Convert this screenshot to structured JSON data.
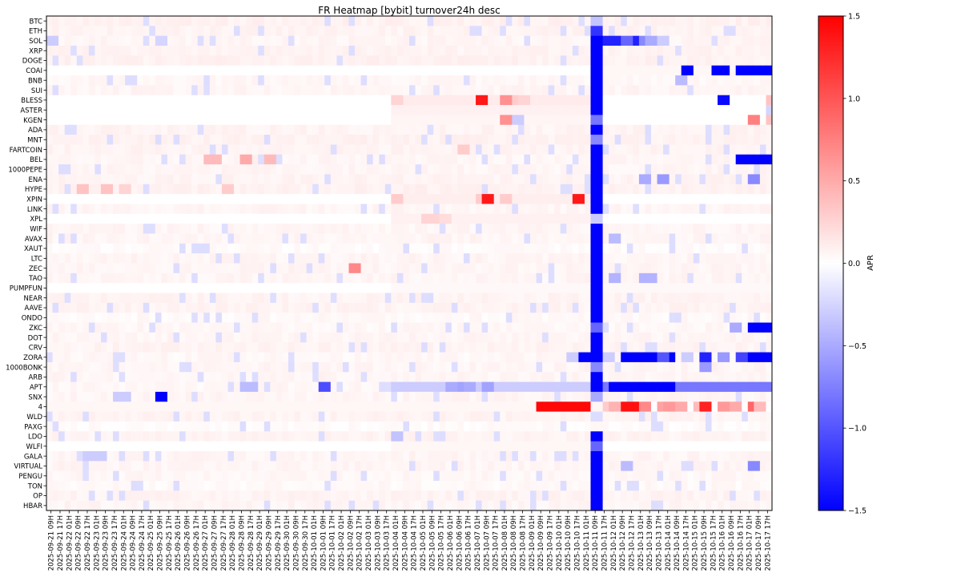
{
  "chart_data": {
    "type": "heatmap",
    "title": "FR Heatmap [bybit] turnover24h desc",
    "colorbar": {
      "label": "APR",
      "range": [
        -1.5,
        1.5
      ],
      "ticks": [
        1.5,
        1.0,
        0.5,
        0.0,
        -0.5,
        -1.0,
        -1.5
      ],
      "tick_labels": [
        "1.5",
        "1.0",
        "0.5",
        "0.0",
        "−0.5",
        "−1.0",
        "−1.5"
      ],
      "colormap": "bwr",
      "colors": {
        "low": "#0000ff",
        "mid": "#ffffff",
        "high": "#ff0000"
      }
    },
    "rows": [
      "BTC",
      "ETH",
      "SOL",
      "XRP",
      "DOGE",
      "COAI",
      "BNB",
      "SUI",
      "BLESS",
      "ASTER",
      "KGEN",
      "ADA",
      "MNT",
      "FARTCOIN",
      "BEL",
      "1000PEPE",
      "ENA",
      "HYPE",
      "XPIN",
      "LINK",
      "XPL",
      "WIF",
      "AVAX",
      "XAUT",
      "LTC",
      "ZEC",
      "TAO",
      "PUMPFUN",
      "NEAR",
      "AAVE",
      "ONDO",
      "ZKC",
      "DOT",
      "CRV",
      "ZORA",
      "1000BONK",
      "ARB",
      "APT",
      "SNX",
      "4",
      "WLD",
      "PAXG",
      "LDO",
      "WLFI",
      "GALA",
      "VIRTUAL",
      "PENGU",
      "TON",
      "OP",
      "HBAR"
    ],
    "columns": [
      "2025-09-21 09H",
      "2025-09-21 17H",
      "2025-09-22 01H",
      "2025-09-22 09H",
      "2025-09-22 17H",
      "2025-09-23 01H",
      "2025-09-23 09H",
      "2025-09-23 17H",
      "2025-09-24 01H",
      "2025-09-24 09H",
      "2025-09-24 17H",
      "2025-09-25 01H",
      "2025-09-25 09H",
      "2025-09-25 17H",
      "2025-09-26 01H",
      "2025-09-26 09H",
      "2025-09-26 17H",
      "2025-09-27 01H",
      "2025-09-27 09H",
      "2025-09-27 17H",
      "2025-09-28 01H",
      "2025-09-28 09H",
      "2025-09-28 17H",
      "2025-09-29 01H",
      "2025-09-29 09H",
      "2025-09-29 17H",
      "2025-09-30 01H",
      "2025-09-30 09H",
      "2025-09-30 17H",
      "2025-10-01 01H",
      "2025-10-01 09H",
      "2025-10-01 17H",
      "2025-10-02 01H",
      "2025-10-02 09H",
      "2025-10-02 17H",
      "2025-10-03 01H",
      "2025-10-03 09H",
      "2025-10-03 17H",
      "2025-10-04 01H",
      "2025-10-04 09H",
      "2025-10-04 17H",
      "2025-10-05 01H",
      "2025-10-05 09H",
      "2025-10-05 17H",
      "2025-10-06 01H",
      "2025-10-06 09H",
      "2025-10-06 17H",
      "2025-10-07 01H",
      "2025-10-07 09H",
      "2025-10-07 17H",
      "2025-10-08 01H",
      "2025-10-08 09H",
      "2025-10-08 17H",
      "2025-10-09 01H",
      "2025-10-09 09H",
      "2025-10-09 17H",
      "2025-10-10 01H",
      "2025-10-10 09H",
      "2025-10-10 17H",
      "2025-10-11 01H",
      "2025-10-11 09H",
      "2025-10-11 17H",
      "2025-10-12 01H",
      "2025-10-12 09H",
      "2025-10-12 17H",
      "2025-10-13 01H",
      "2025-10-13 09H",
      "2025-10-13 17H",
      "2025-10-14 01H",
      "2025-10-14 09H",
      "2025-10-14 17H",
      "2025-10-15 01H",
      "2025-10-15 09H",
      "2025-10-15 17H",
      "2025-10-16 01H",
      "2025-10-16 09H",
      "2025-10-16 17H",
      "2025-10-17 01H",
      "2025-10-17 09H",
      "2025-10-17 17H"
    ],
    "cells_per_column": 1.5,
    "grid": false,
    "baseline": {
      "BTC": 0.08,
      "ETH": 0.07,
      "SOL": 0.06,
      "XRP": 0.07,
      "DOGE": 0.08,
      "COAI": 0.0,
      "BNB": 0.05,
      "SUI": 0.06,
      "BLESS": 0.0,
      "ASTER": 0.0,
      "KGEN": 0.0,
      "ADA": 0.07,
      "MNT": 0.08,
      "FARTCOIN": 0.07,
      "BEL": 0.06,
      "1000PEPE": 0.06,
      "ENA": 0.07,
      "HYPE": 0.08,
      "XPIN": 0.0,
      "LINK": 0.06,
      "XPL": 0.0,
      "WIF": 0.06,
      "AVAX": 0.06,
      "XAUT": 0.03,
      "LTC": 0.06,
      "ZEC": 0.06,
      "TAO": 0.06,
      "PUMPFUN": 0.0,
      "NEAR": 0.07,
      "AAVE": 0.07,
      "ONDO": 0.04,
      "ZKC": 0.05,
      "DOT": 0.06,
      "CRV": 0.07,
      "ZORA": 0.05,
      "1000BONK": 0.06,
      "ARB": 0.06,
      "APT": 0.05,
      "SNX": 0.06,
      "4": 0.0,
      "WLD": 0.07,
      "PAXG": 0.03,
      "LDO": 0.07,
      "WLFI": 0.0,
      "GALA": 0.06,
      "VIRTUAL": 0.06,
      "PENGU": 0.05,
      "TON": 0.04,
      "OP": 0.07,
      "HBAR": 0.06
    },
    "overrides": [
      {
        "row": "BLESS",
        "from": "2025-10-04 01H",
        "to": "2025-10-11 01H",
        "value": 0.12
      },
      {
        "row": "ASTER",
        "from": "2025-10-04 01H",
        "to": "2025-10-11 01H",
        "value": 0.08
      },
      {
        "row": "KGEN",
        "from": "2025-10-04 01H",
        "to": "2025-10-11 01H",
        "value": 0.06
      },
      {
        "row": "XPIN",
        "from": "2025-10-04 01H",
        "to": "2025-10-11 01H",
        "value": 0.1
      },
      {
        "row": "XPL",
        "from": "2025-10-04 01H",
        "to": "2025-10-11 01H",
        "value": 0.08
      },
      {
        "row": "WLFI",
        "from": "2025-10-04 01H",
        "to": "2025-10-11 01H",
        "value": 0.05
      },
      {
        "row": "4",
        "from": "2025-09-21 09H",
        "to": "2025-10-11 01H",
        "value": 0.05
      },
      {
        "row": "COAI",
        "from": "2025-10-11 17H",
        "to": "2025-10-17 17H",
        "value": 0.05
      },
      {
        "row": "PUMPFUN",
        "from": "2025-10-04 01H",
        "to": "2025-10-17 17H",
        "value": 0.04
      },
      {
        "row": "BLESS",
        "col": "2025-10-04 01H",
        "value": 0.25
      },
      {
        "row": "BLESS",
        "col": "2025-10-07 01H",
        "value": 1.35
      },
      {
        "row": "BLESS",
        "col": "2025-10-08 01H",
        "value": 0.65
      },
      {
        "row": "BLESS",
        "col": "2025-10-08 09H",
        "value": 0.3
      },
      {
        "row": "BLESS",
        "col": "2025-10-08 17H",
        "value": 0.25
      },
      {
        "row": "BLESS",
        "col": "2025-10-16 01H",
        "value": -1.45
      },
      {
        "row": "BLESS",
        "col": "2025-10-17 17H",
        "value": 0.35
      },
      {
        "row": "ASTER",
        "col": "2025-10-17 17H",
        "value": -0.25
      },
      {
        "row": "KGEN",
        "col": "2025-10-08 01H",
        "value": 0.65
      },
      {
        "row": "KGEN",
        "col": "2025-10-08 09H",
        "value": -0.3
      },
      {
        "row": "KGEN",
        "col": "2025-10-17 01H",
        "value": 0.75
      },
      {
        "row": "KGEN",
        "col": "2025-10-17 17H",
        "value": 0.35
      },
      {
        "row": "XPIN",
        "col": "2025-10-04 01H",
        "value": 0.3
      },
      {
        "row": "XPIN",
        "col": "2025-10-07 01H",
        "value": 0.3
      },
      {
        "row": "XPIN",
        "col": "2025-10-07 09H",
        "value": 1.35
      },
      {
        "row": "XPIN",
        "col": "2025-10-08 01H",
        "value": 0.3
      },
      {
        "row": "XPIN",
        "col": "2025-10-10 17H",
        "value": 1.35
      },
      {
        "row": "XPL",
        "col": "2025-10-05 01H",
        "value": 0.25
      },
      {
        "row": "XPL",
        "col": "2025-10-05 09H",
        "value": 0.25
      },
      {
        "row": "XPL",
        "col": "2025-10-05 17H",
        "value": 0.2
      },
      {
        "row": "FARTCOIN",
        "col": "2025-10-06 09H",
        "value": 0.3
      },
      {
        "row": "ZEC",
        "col": "2025-10-02 09H",
        "value": 0.7
      },
      {
        "row": "HYPE",
        "col": "2025-09-22 09H",
        "value": 0.35
      },
      {
        "row": "HYPE",
        "col": "2025-09-23 09H",
        "value": 0.35
      },
      {
        "row": "HYPE",
        "col": "2025-09-24 01H",
        "value": 0.25
      },
      {
        "row": "HYPE",
        "col": "2025-09-27 17H",
        "value": 0.3
      },
      {
        "row": "BEL",
        "col": "2025-09-27 01H",
        "value": 0.4
      },
      {
        "row": "BEL",
        "col": "2025-09-27 09H",
        "value": 0.4
      },
      {
        "row": "BEL",
        "col": "2025-09-28 09H",
        "value": 0.5
      },
      {
        "row": "BEL",
        "col": "2025-09-29 09H",
        "value": 0.4
      },
      {
        "row": "SNX",
        "col": "2025-09-25 09H",
        "value": -1.5
      },
      {
        "row": "SNX",
        "col": "2025-09-23 17H",
        "value": -0.3
      },
      {
        "row": "SNX",
        "col": "2025-09-24 01H",
        "value": -0.3
      },
      {
        "row": "APT",
        "col": "2025-10-01 09H",
        "value": -1.05
      },
      {
        "row": "APT",
        "col": "2025-09-28 09H",
        "value": -0.4
      },
      {
        "row": "APT",
        "col": "2025-09-28 17H",
        "value": -0.4
      },
      {
        "row": "LDO",
        "col": "2025-10-04 01H",
        "value": -0.35
      },
      {
        "row": "GALA",
        "col": "2025-09-22 17H",
        "value": -0.3
      },
      {
        "row": "GALA",
        "col": "2025-09-23 01H",
        "value": -0.3
      },
      {
        "row": "TAO",
        "col": "2025-10-12 01H",
        "value": -0.45
      },
      {
        "row": "TAO",
        "col": "2025-10-13 01H",
        "value": -0.45
      },
      {
        "row": "TAO",
        "col": "2025-10-13 09H",
        "value": -0.45
      },
      {
        "row": "SOL",
        "col": "2025-09-21 09H",
        "value": -0.3
      },
      {
        "row": "SOL",
        "col": "2025-09-25 09H",
        "value": -0.25
      },
      {
        "row": "APT",
        "from": "2025-10-04 01H",
        "to": "2025-10-11 01H",
        "value": -0.3
      },
      {
        "row": "APT",
        "col": "2025-10-06 01H",
        "value": -0.5
      },
      {
        "row": "APT",
        "col": "2025-10-06 09H",
        "value": -0.55
      },
      {
        "row": "APT",
        "col": "2025-10-06 17H",
        "value": -0.5
      },
      {
        "row": "APT",
        "col": "2025-10-07 09H",
        "value": -0.55
      },
      {
        "row": "4",
        "from": "2025-10-09 09H",
        "to": "2025-10-11 01H",
        "value": 1.45
      },
      {
        "row": "ZORA",
        "col": "2025-10-10 17H",
        "value": -1.5
      },
      {
        "row": "ZORA",
        "col": "2025-10-11 01H",
        "value": -1.5
      },
      {
        "row": "ZORA",
        "col": "2025-10-10 09H",
        "value": -0.3
      },
      {
        "row": "ALL",
        "col": "2025-10-11 09H",
        "value": -1.5
      },
      {
        "row": "BTC",
        "col": "2025-10-11 09H",
        "value": -0.35
      },
      {
        "row": "ETH",
        "col": "2025-10-11 09H",
        "value": -1.2
      },
      {
        "row": "ADA",
        "col": "2025-10-11 09H",
        "value": -1.5
      },
      {
        "row": "MNT",
        "col": "2025-10-11 09H",
        "value": -0.7
      },
      {
        "row": "KGEN",
        "col": "2025-10-11 09H",
        "value": -0.8
      },
      {
        "row": "XPL",
        "col": "2025-10-11 09H",
        "value": -0.3
      },
      {
        "row": "ZKC",
        "col": "2025-10-11 09H",
        "value": -0.9
      },
      {
        "row": "1000BONK",
        "col": "2025-10-11 09H",
        "value": -0.7
      },
      {
        "row": "SNX",
        "col": "2025-10-11 09H",
        "value": -0.5
      },
      {
        "row": "4",
        "col": "2025-10-11 09H",
        "value": 0.05
      },
      {
        "row": "WLD",
        "col": "2025-10-11 09H",
        "value": -0.2
      },
      {
        "row": "PAXG",
        "col": "2025-10-11 09H",
        "value": 0.05
      },
      {
        "row": "WLFI",
        "col": "2025-10-11 09H",
        "value": -0.9
      },
      {
        "row": "ARB",
        "col": "2025-10-11 09H",
        "value": -1.5
      },
      {
        "row": "SOL",
        "from": "2025-10-11 17H",
        "to": "2025-10-13 17H",
        "value": -1.3
      },
      {
        "row": "SOL",
        "col": "2025-10-12 09H",
        "value": -0.9
      },
      {
        "row": "SOL",
        "col": "2025-10-13 01H",
        "value": -0.7
      },
      {
        "row": "SOL",
        "col": "2025-10-13 09H",
        "value": -0.5
      },
      {
        "row": "SOL",
        "col": "2025-10-13 17H",
        "value": -0.3
      },
      {
        "row": "APT",
        "from": "2025-10-11 17H",
        "to": "2025-10-17 17H",
        "value": -0.8
      },
      {
        "row": "APT",
        "from": "2025-10-12 01H",
        "to": "2025-10-14 01H",
        "value": -1.5
      },
      {
        "row": "ZORA",
        "from": "2025-10-12 09H",
        "to": "2025-10-14 01H",
        "value": -1.5
      },
      {
        "row": "ZORA",
        "col": "2025-10-13 17H",
        "value": -1.0
      },
      {
        "row": "ZORA",
        "col": "2025-10-14 17H",
        "value": -0.3
      },
      {
        "row": "ZORA",
        "col": "2025-10-15 09H",
        "value": -1.3
      },
      {
        "row": "ZORA",
        "col": "2025-10-16 01H",
        "value": -0.6
      },
      {
        "row": "ZORA",
        "col": "2025-10-16 17H",
        "value": -1.1
      },
      {
        "row": "ZORA",
        "from": "2025-10-17 01H",
        "to": "2025-10-17 17H",
        "value": -1.5
      },
      {
        "row": "ZORA",
        "col": "2025-10-11 17H",
        "value": -0.3
      },
      {
        "row": "COAI",
        "col": "2025-10-14 17H",
        "value": -1.5
      },
      {
        "row": "COAI",
        "from": "2025-10-15 17H",
        "to": "2025-10-16 01H",
        "value": -1.5
      },
      {
        "row": "COAI",
        "from": "2025-10-16 17H",
        "to": "2025-10-17 17H",
        "value": -1.5
      },
      {
        "row": "BEL",
        "from": "2025-10-16 17H",
        "to": "2025-10-17 17H",
        "value": -1.5
      },
      {
        "row": "ZKC",
        "from": "2025-10-17 01H",
        "to": "2025-10-17 17H",
        "value": -1.5
      },
      {
        "row": "ZKC",
        "col": "2025-10-16 09H",
        "value": -0.5
      },
      {
        "row": "ENA",
        "col": "2025-10-17 01H",
        "value": -0.7
      },
      {
        "row": "ENA",
        "col": "2025-10-13 01H",
        "value": -0.5
      },
      {
        "row": "ENA",
        "col": "2025-10-13 17H",
        "value": -0.6
      },
      {
        "row": "VIRTUAL",
        "col": "2025-10-17 01H",
        "value": -0.7
      },
      {
        "row": "VIRTUAL",
        "col": "2025-10-12 09H",
        "value": -0.4
      },
      {
        "row": "1000BONK",
        "col": "2025-10-15 09H",
        "value": -0.6
      },
      {
        "row": "AVAX",
        "col": "2025-10-12 01H",
        "value": -0.4
      },
      {
        "row": "BNB",
        "col": "2025-10-14 09H",
        "value": -0.4
      },
      {
        "row": "4",
        "col": "2025-10-11 17H",
        "value": 0.3
      },
      {
        "row": "4",
        "col": "2025-10-12 01H",
        "value": 0.45
      },
      {
        "row": "4",
        "from": "2025-10-12 09H",
        "to": "2025-10-12 17H",
        "value": 1.4
      },
      {
        "row": "4",
        "col": "2025-10-13 01H",
        "value": 0.7
      },
      {
        "row": "4",
        "col": "2025-10-13 17H",
        "value": 0.55
      },
      {
        "row": "4",
        "col": "2025-10-14 01H",
        "value": 0.6
      },
      {
        "row": "4",
        "col": "2025-10-14 09H",
        "value": 0.5
      },
      {
        "row": "4",
        "col": "2025-10-15 01H",
        "value": 0.4
      },
      {
        "row": "4",
        "col": "2025-10-15 09H",
        "value": 1.3
      },
      {
        "row": "4",
        "col": "2025-10-16 01H",
        "value": 0.6
      },
      {
        "row": "4",
        "col": "2025-10-16 09H",
        "value": 0.5
      },
      {
        "row": "4",
        "col": "2025-10-17 01H",
        "value": 0.9
      },
      {
        "row": "4",
        "col": "2025-10-17 09H",
        "value": 0.4
      }
    ]
  }
}
